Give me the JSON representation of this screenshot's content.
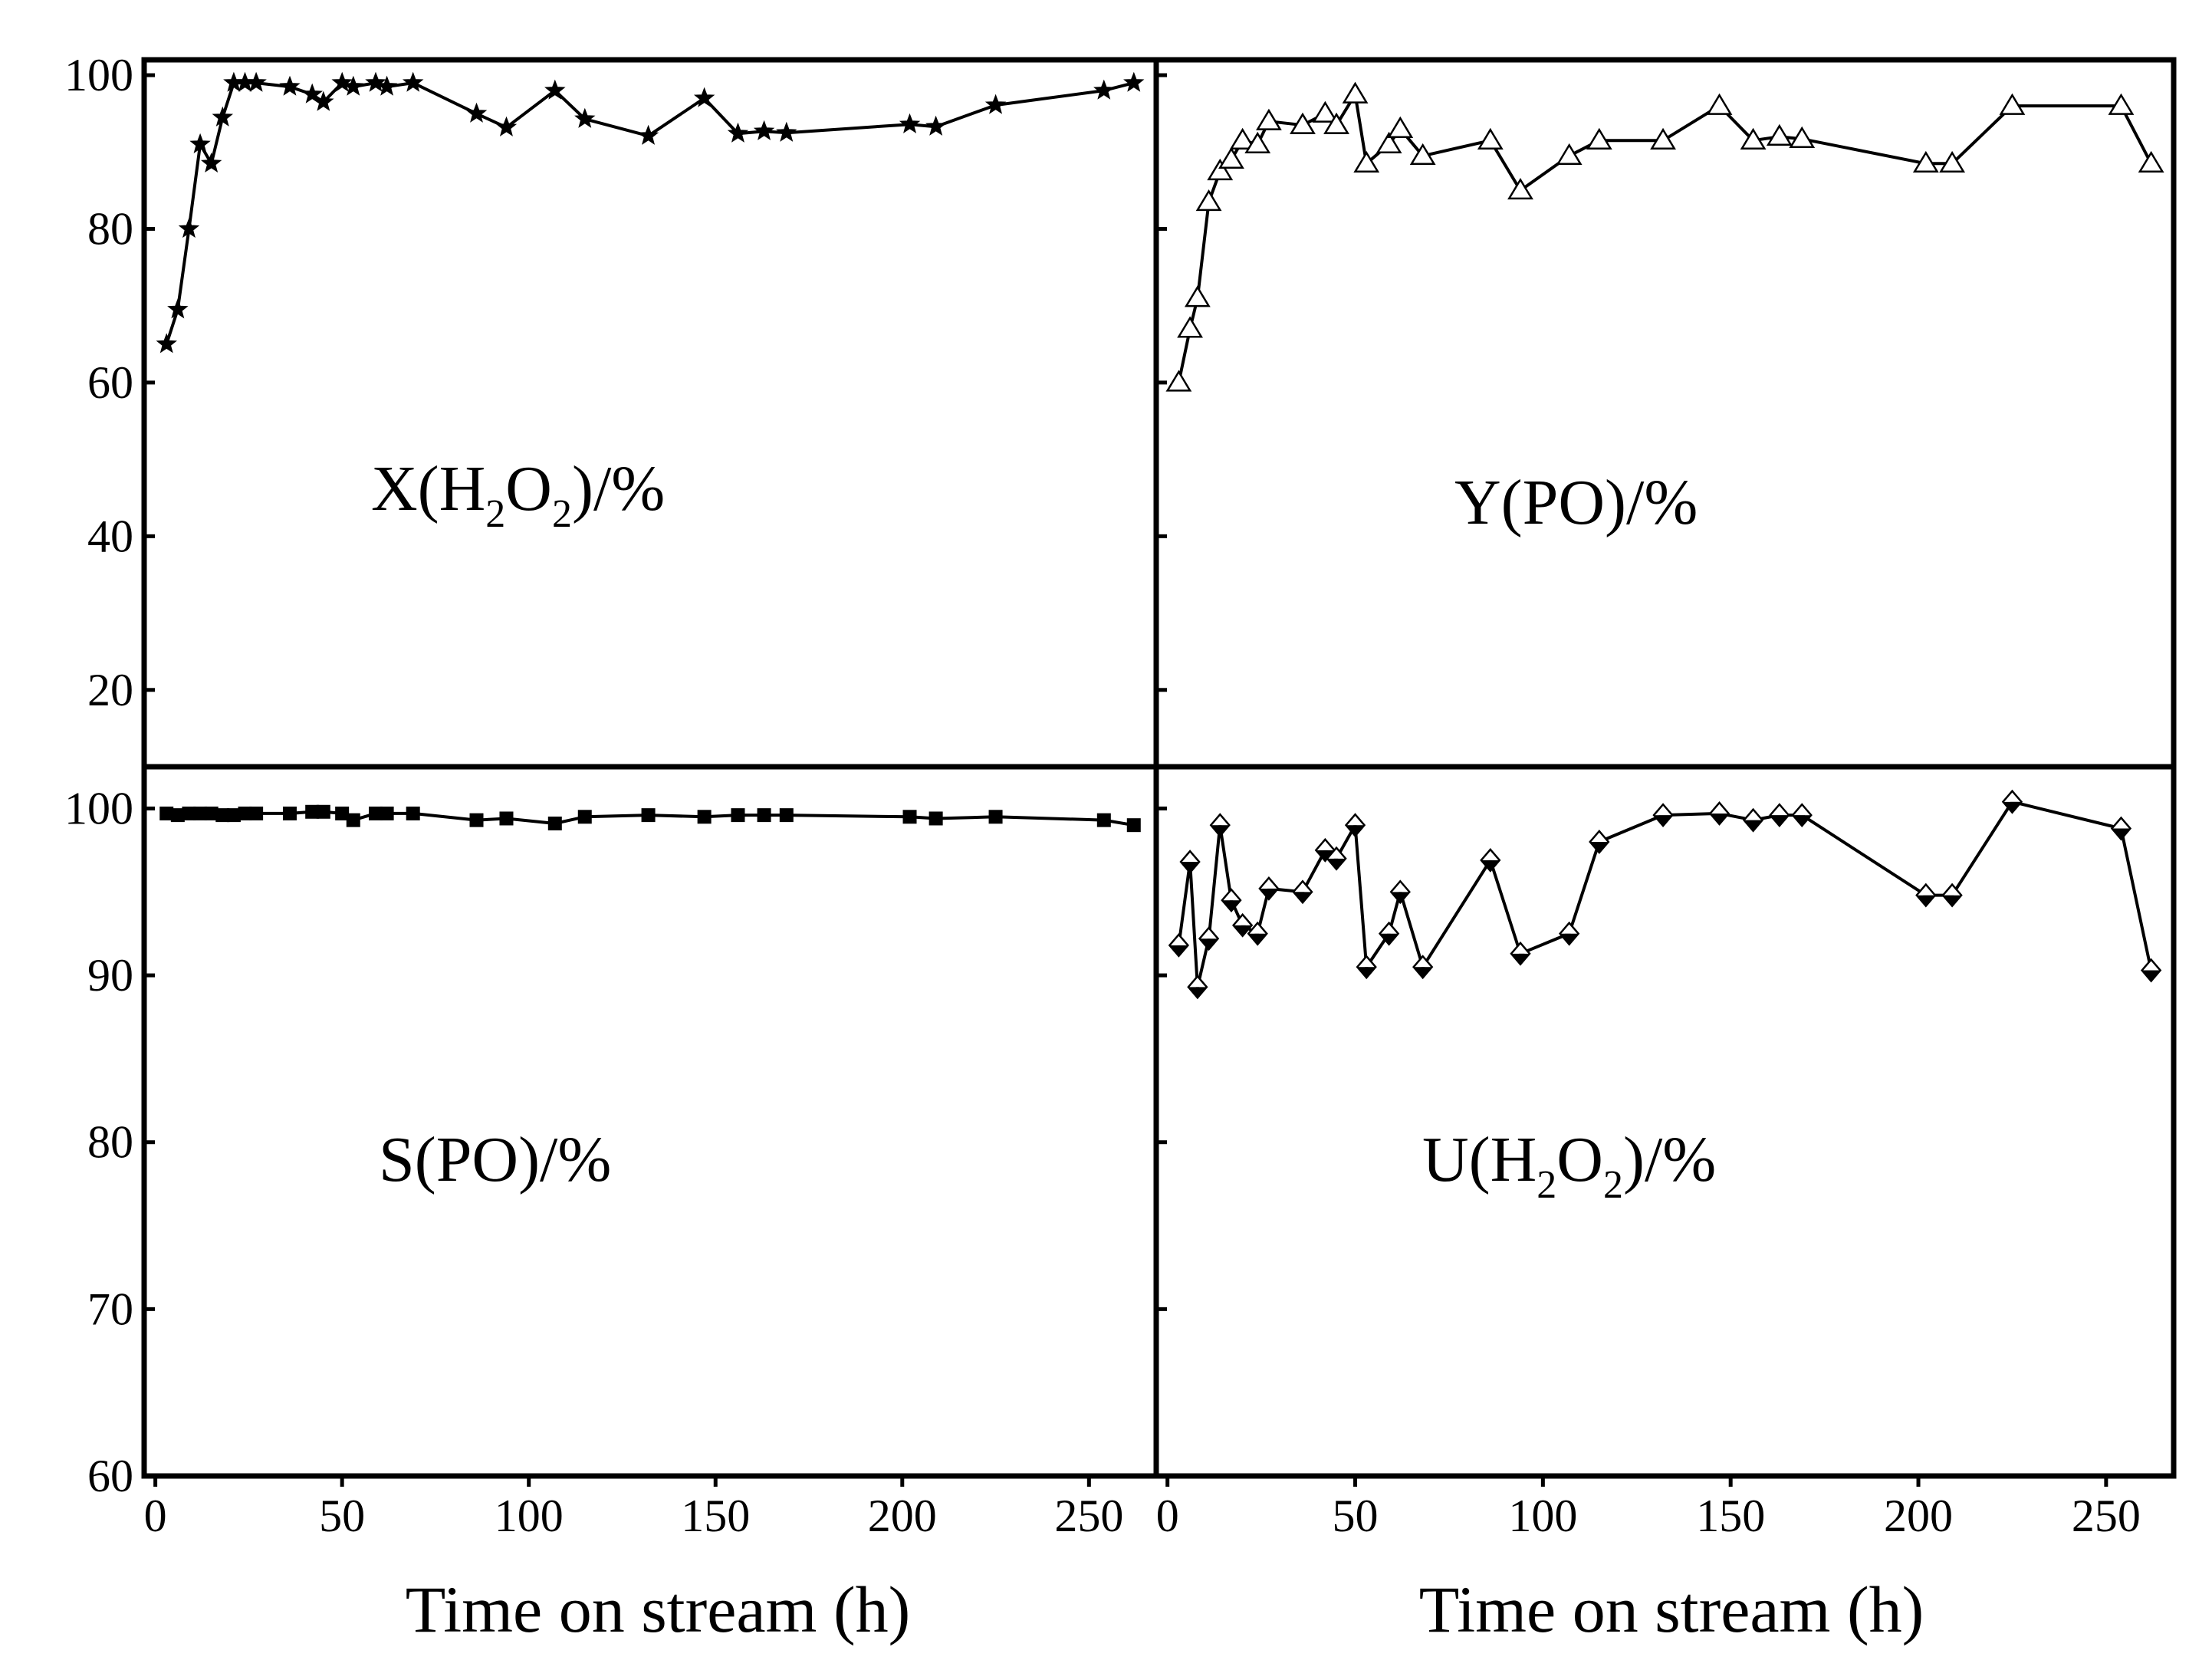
{
  "figure": {
    "xlabel_left": "Time on stream (h)",
    "xlabel_right": "Time on stream (h)"
  },
  "chart_data": [
    {
      "type": "line",
      "panel": "top-left",
      "marker": "filled-star",
      "label_main": "X(H",
      "label_sub1": "2",
      "label_mid": "O",
      "label_sub2": "2",
      "label_end": ")/%",
      "xlabel": "Time on stream (h)",
      "ylabel": "",
      "xlim": [
        -3,
        268
      ],
      "ylim": [
        10,
        102
      ],
      "yticks": [
        20,
        40,
        60,
        80,
        100
      ],
      "x": [
        3,
        6,
        9,
        12,
        15,
        18,
        21,
        24,
        27,
        36,
        42,
        45,
        50,
        53,
        59,
        62,
        69,
        86,
        94,
        107,
        115,
        132,
        147,
        156,
        163,
        169,
        202,
        209,
        225,
        254,
        262
      ],
      "y": [
        65,
        69.5,
        80,
        91,
        88.5,
        94.5,
        99,
        99,
        99,
        98.5,
        97.5,
        96.5,
        99,
        98.5,
        99,
        98.5,
        99,
        95,
        93.2,
        98,
        94.3,
        92.1,
        97,
        92.4,
        92.7,
        92.5,
        93.6,
        93.3,
        96.1,
        98,
        99
      ]
    },
    {
      "type": "line",
      "panel": "top-right",
      "marker": "open-triangle",
      "label_main": "Y(PO)/%",
      "xlabel": "Time on stream (h)",
      "ylabel": "",
      "xlim": [
        -3,
        268
      ],
      "ylim": [
        10,
        102
      ],
      "yticks": [
        20,
        40,
        60,
        80,
        100
      ],
      "x": [
        3,
        6,
        8,
        11,
        14,
        17,
        20,
        24,
        27,
        36,
        42,
        45,
        50,
        53,
        59,
        62,
        68,
        86,
        94,
        107,
        115,
        132,
        147,
        156,
        163,
        169,
        202,
        209,
        225,
        254,
        262
      ],
      "y": [
        60,
        67,
        71,
        83.5,
        87.5,
        89,
        91.5,
        91,
        94,
        93.5,
        95,
        93.5,
        97.5,
        88.5,
        91,
        93,
        89.5,
        91.5,
        85,
        89.5,
        91.5,
        91.5,
        96,
        91.5,
        92,
        91.7,
        88.5,
        88.5,
        96,
        96,
        88.5
      ]
    },
    {
      "type": "line",
      "panel": "bottom-left",
      "marker": "filled-square",
      "label_main": "S(PO)/%",
      "xlabel": "Time on stream (h)",
      "ylabel": "",
      "xlim": [
        -3,
        268
      ],
      "ylim": [
        60,
        102.5
      ],
      "yticks": [
        60,
        70,
        80,
        90,
        100
      ],
      "xticks": [
        0,
        50,
        100,
        150,
        200,
        250
      ],
      "x": [
        3,
        6,
        9,
        12,
        15,
        18,
        21,
        24,
        27,
        36,
        42,
        45,
        50,
        53,
        59,
        62,
        69,
        86,
        94,
        107,
        115,
        132,
        147,
        156,
        163,
        169,
        202,
        209,
        225,
        254,
        262
      ],
      "y": [
        99.7,
        99.6,
        99.7,
        99.7,
        99.7,
        99.6,
        99.6,
        99.7,
        99.7,
        99.7,
        99.8,
        99.8,
        99.7,
        99.3,
        99.7,
        99.7,
        99.7,
        99.3,
        99.4,
        99.1,
        99.5,
        99.6,
        99.5,
        99.6,
        99.6,
        99.6,
        99.5,
        99.4,
        99.5,
        99.3,
        99.0
      ]
    },
    {
      "type": "line",
      "panel": "bottom-right",
      "marker": "half-filled-diamond",
      "label_main": "U(H",
      "label_sub1": "2",
      "label_mid": "O",
      "label_sub2": "2",
      "label_end": ")/%",
      "xlabel": "Time on stream (h)",
      "ylabel": "",
      "xlim": [
        -3,
        268
      ],
      "ylim": [
        60,
        102.5
      ],
      "yticks": [
        70,
        80,
        90,
        100
      ],
      "xticks": [
        0,
        50,
        100,
        150,
        200,
        250
      ],
      "x": [
        3,
        6,
        8,
        11,
        14,
        17,
        20,
        24,
        27,
        36,
        42,
        45,
        50,
        53,
        59,
        62,
        68,
        86,
        94,
        107,
        115,
        132,
        147,
        156,
        163,
        169,
        202,
        209,
        225,
        254,
        262
      ],
      "y": [
        91.8,
        96.8,
        89.3,
        92.2,
        99,
        94.5,
        93,
        92.5,
        95.2,
        95,
        97.5,
        97.0,
        99,
        90.5,
        92.5,
        95,
        90.5,
        96.9,
        91.3,
        92.5,
        98,
        99.6,
        99.7,
        99.3,
        99.6,
        99.6,
        94.8,
        94.8,
        100.4,
        98.8,
        90.3
      ]
    }
  ]
}
